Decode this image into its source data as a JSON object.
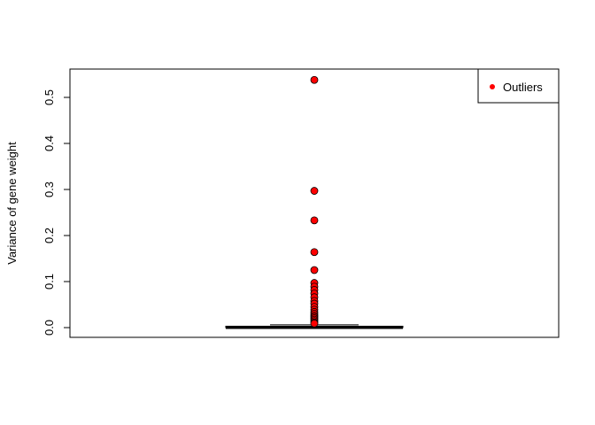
{
  "chart_data": {
    "type": "boxplot",
    "title": "",
    "xlabel": "",
    "ylabel": "Variance of gene weight",
    "ylim": [
      -0.02,
      0.57
    ],
    "yticks": [
      "0.0",
      "0.1",
      "0.2",
      "0.3",
      "0.4",
      "0.5"
    ],
    "ytick_values": [
      0.0,
      0.1,
      0.2,
      0.3,
      0.4,
      0.5
    ],
    "box": {
      "q1": 0.0,
      "median": 0.0,
      "q3": 0.003,
      "whisker_low": 0.0,
      "whisker_high": 0.006
    },
    "outliers": [
      0.538,
      0.297,
      0.233,
      0.164,
      0.125,
      0.097,
      0.089,
      0.082,
      0.074,
      0.066,
      0.058,
      0.052,
      0.045,
      0.039,
      0.034,
      0.03,
      0.026,
      0.023,
      0.02,
      0.017,
      0.014,
      0.011,
      0.009
    ],
    "grid": false,
    "legend": {
      "position": "top-right",
      "entries": [
        {
          "label": "Outliers",
          "color": "#ff0000"
        }
      ]
    },
    "colors": {
      "outlier_fill": "#ff0000",
      "outlier_stroke": "#000000",
      "box": "#000000"
    }
  }
}
